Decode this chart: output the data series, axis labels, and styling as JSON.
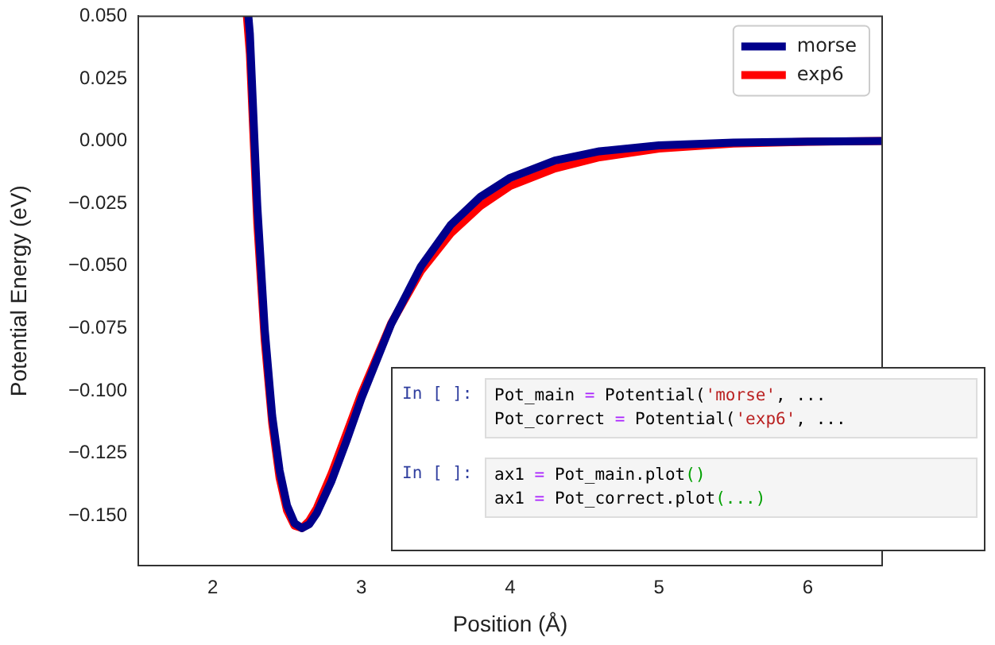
{
  "chart_data": {
    "type": "line",
    "xlabel": "Position (Å)",
    "ylabel": "Potential Energy (eV)",
    "xlim": [
      1.5,
      6.5
    ],
    "xticks": [
      2,
      3,
      4,
      5,
      6
    ],
    "ylim": [
      -0.17,
      0.05
    ],
    "yticks": [
      {
        "value": -0.15,
        "label": "−0.150"
      },
      {
        "value": -0.125,
        "label": "−0.125"
      },
      {
        "value": -0.1,
        "label": "−0.100"
      },
      {
        "value": -0.075,
        "label": "−0.075"
      },
      {
        "value": -0.05,
        "label": "−0.050"
      },
      {
        "value": -0.025,
        "label": "−0.025"
      },
      {
        "value": 0,
        "label": "0.000"
      },
      {
        "value": 0.025,
        "label": "0.025"
      },
      {
        "value": 0.05,
        "label": "0.050"
      }
    ],
    "grid": false,
    "legend": "top right",
    "marker": "none",
    "line_style": "solid",
    "series": [
      {
        "name": "morse",
        "color": "#00008b",
        "x": [
          2.24,
          2.25,
          2.3,
          2.35,
          2.4,
          2.45,
          2.5,
          2.55,
          2.6,
          2.65,
          2.7,
          2.8,
          2.9,
          3.0,
          3.2,
          3.4,
          3.6,
          3.8,
          4.0,
          4.3,
          4.6,
          5.0,
          5.5,
          6.0,
          6.5
        ],
        "values": [
          0.05,
          0.043,
          -0.026,
          -0.0755,
          -0.11,
          -0.132,
          -0.146,
          -0.153,
          -0.155,
          -0.1534,
          -0.149,
          -0.136,
          -0.12,
          -0.103,
          -0.0733,
          -0.0502,
          -0.0336,
          -0.0223,
          -0.0147,
          -0.0078,
          -0.0041,
          -0.0017,
          -0.0006,
          -0.0002,
          0
        ]
      },
      {
        "name": "exp6",
        "color": "#ff0000",
        "x": [
          2.23,
          2.25,
          2.3,
          2.35,
          2.4,
          2.45,
          2.5,
          2.55,
          2.6,
          2.65,
          2.7,
          2.8,
          2.9,
          3.0,
          3.2,
          3.4,
          3.6,
          3.8,
          4.0,
          4.3,
          4.6,
          5.0,
          5.5,
          6.0,
          6.5
        ],
        "values": [
          0.05,
          0.035,
          -0.033,
          -0.08,
          -0.113,
          -0.135,
          -0.148,
          -0.154,
          -0.155,
          -0.152,
          -0.147,
          -0.133,
          -0.117,
          -0.101,
          -0.073,
          -0.052,
          -0.037,
          -0.026,
          -0.018,
          -0.011,
          -0.0065,
          -0.003,
          -0.001,
          -0.0003,
          0
        ]
      }
    ],
    "annotations": [
      "In [ ]:",
      "Pot_main = Potential('morse', ...\nPot_correct = Potential('exp6', ...",
      "In [ ]:",
      "ax1 = Pot_main.plot()\nax1 = Pot_correct.plot(...)"
    ]
  }
}
